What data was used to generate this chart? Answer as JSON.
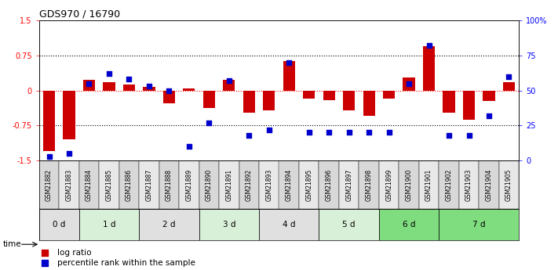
{
  "title": "GDS970 / 16790",
  "samples": [
    "GSM21882",
    "GSM21883",
    "GSM21884",
    "GSM21885",
    "GSM21886",
    "GSM21887",
    "GSM21888",
    "GSM21889",
    "GSM21890",
    "GSM21891",
    "GSM21892",
    "GSM21893",
    "GSM21894",
    "GSM21895",
    "GSM21896",
    "GSM21897",
    "GSM21898",
    "GSM21899",
    "GSM21900",
    "GSM21901",
    "GSM21902",
    "GSM21903",
    "GSM21904",
    "GSM21905"
  ],
  "log_ratio": [
    -1.3,
    -1.05,
    0.22,
    0.18,
    0.12,
    0.08,
    -0.28,
    0.05,
    -0.38,
    0.22,
    -0.48,
    -0.42,
    0.62,
    -0.18,
    -0.2,
    -0.42,
    -0.55,
    -0.18,
    0.28,
    0.95,
    -0.48,
    -0.62,
    -0.22,
    0.18
  ],
  "percentile": [
    3,
    5,
    55,
    62,
    58,
    53,
    50,
    10,
    27,
    57,
    18,
    22,
    70,
    20,
    20,
    20,
    20,
    20,
    55,
    82,
    18,
    18,
    32,
    60
  ],
  "groups": [
    {
      "label": "0 d",
      "start": 0,
      "end": 2,
      "color": "#e0e0e0"
    },
    {
      "label": "1 d",
      "start": 2,
      "end": 5,
      "color": "#d8f0d8"
    },
    {
      "label": "2 d",
      "start": 5,
      "end": 8,
      "color": "#e0e0e0"
    },
    {
      "label": "3 d",
      "start": 8,
      "end": 11,
      "color": "#d8f0d8"
    },
    {
      "label": "4 d",
      "start": 11,
      "end": 14,
      "color": "#e0e0e0"
    },
    {
      "label": "5 d",
      "start": 14,
      "end": 17,
      "color": "#d8f0d8"
    },
    {
      "label": "6 d",
      "start": 17,
      "end": 20,
      "color": "#7fdd7f"
    },
    {
      "label": "7 d",
      "start": 20,
      "end": 24,
      "color": "#7fdd7f"
    }
  ],
  "bar_color": "#cc0000",
  "dot_color": "#0000cc",
  "ylim_left": [
    -1.5,
    1.5
  ],
  "ylim_right": [
    0,
    100
  ],
  "yticks_left": [
    -1.5,
    -0.75,
    0,
    0.75,
    1.5
  ],
  "ytick_labels_left": [
    "-1.5",
    "-0.75",
    "0",
    "0.75",
    "1.5"
  ],
  "yticks_right": [
    0,
    25,
    50,
    75,
    100
  ],
  "ytick_labels_right": [
    "0",
    "25",
    "50",
    "75",
    "100%"
  ],
  "title_fontsize": 9,
  "tick_fontsize": 7,
  "legend_fontsize": 7.5,
  "group_label_fontsize": 7.5,
  "sample_fontsize": 5.5
}
